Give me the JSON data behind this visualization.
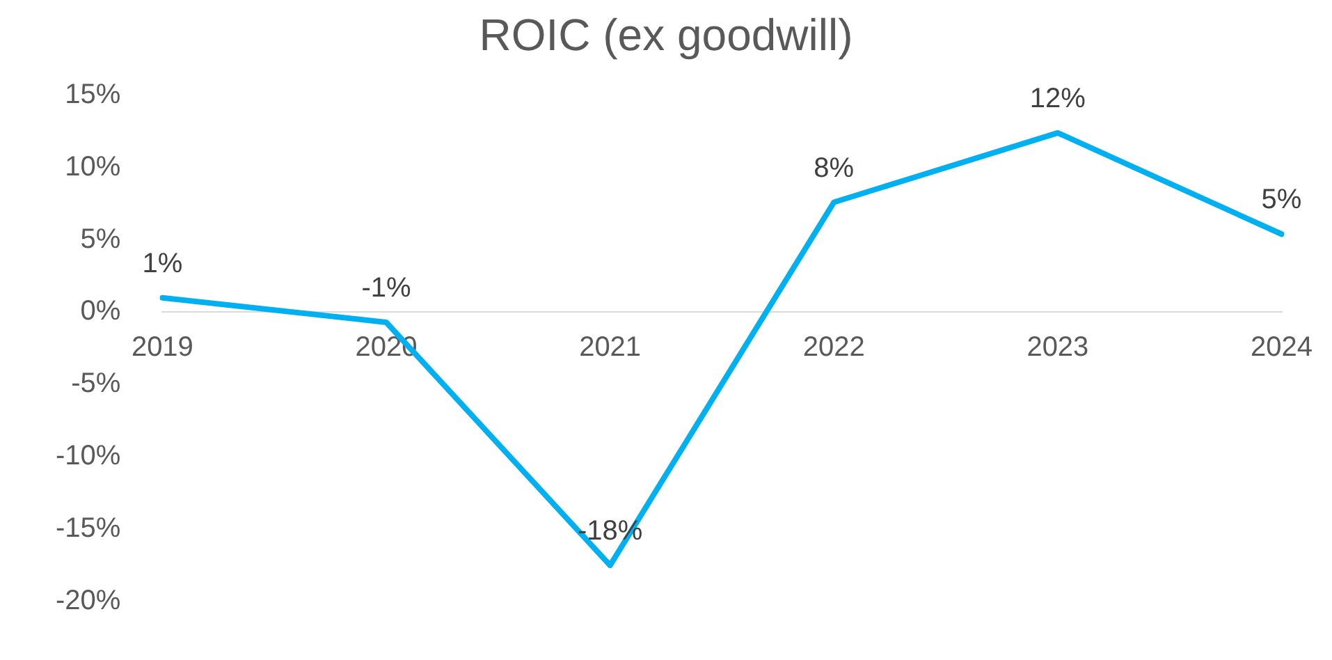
{
  "chart_data": {
    "type": "line",
    "title": "ROIC (ex goodwill)",
    "categories": [
      "2019",
      "2020",
      "2021",
      "2022",
      "2023",
      "2024"
    ],
    "series": [
      {
        "color": "#00b0f0",
        "values": [
          1.0,
          -0.7,
          -17.5,
          7.6,
          12.4,
          5.4
        ],
        "value_labels": [
          "1%",
          "-1%",
          "-18%",
          "8%",
          "12%",
          "5%"
        ]
      }
    ],
    "ylim": [
      -20,
      15
    ],
    "yticks": [
      {
        "value": -20,
        "label": "-20%"
      },
      {
        "value": -15,
        "label": "-15%"
      },
      {
        "value": -10,
        "label": "-10%"
      },
      {
        "value": -5,
        "label": "-5%"
      },
      {
        "value": 0,
        "label": "0%"
      },
      {
        "value": 5,
        "label": "5%"
      },
      {
        "value": 10,
        "label": "10%"
      },
      {
        "value": 15,
        "label": "15%"
      }
    ],
    "grid": false,
    "legend": false,
    "marker": "none",
    "line_style": "solid"
  }
}
